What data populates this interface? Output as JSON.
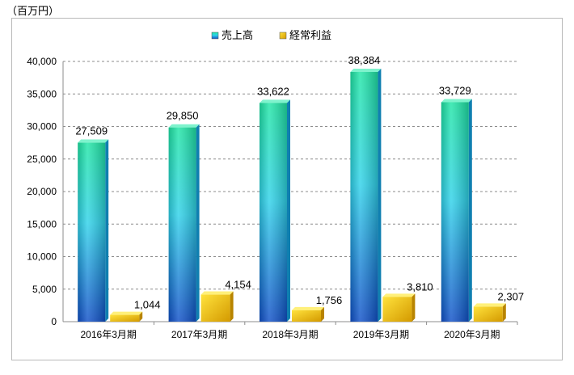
{
  "chart_data": {
    "type": "bar",
    "unit_label": "（百万円）",
    "categories": [
      "2016年3月期",
      "2017年3月期",
      "2018年3月期",
      "2019年3月期",
      "2020年3月期"
    ],
    "series": [
      {
        "name": "売上高",
        "values": [
          27509,
          29850,
          33622,
          38384,
          33729
        ],
        "labels": [
          "27,509",
          "29,850",
          "33,622",
          "38,384",
          "33,729"
        ]
      },
      {
        "name": "経常利益",
        "values": [
          1044,
          4154,
          1756,
          3810,
          2307
        ],
        "labels": [
          "1,044",
          "4,154",
          "1,756",
          "3,810",
          "2,307"
        ]
      }
    ],
    "ylim": [
      0,
      40000
    ],
    "yticks": [
      0,
      5000,
      10000,
      15000,
      20000,
      25000,
      30000,
      35000,
      40000
    ],
    "ytick_labels": [
      "0",
      "5,000",
      "10,000",
      "15,000",
      "20,000",
      "25,000",
      "30,000",
      "35,000",
      "40,000"
    ],
    "grid": true,
    "legend_position": "top-center",
    "colors": {
      "sales_top": "#1fe6a6",
      "sales_mid": "#2fd2ea",
      "sales_bottom": "#1050c8",
      "profit_light": "#ffe23c",
      "profit_dark": "#d49a00",
      "grid": "#8c8c8c"
    }
  }
}
